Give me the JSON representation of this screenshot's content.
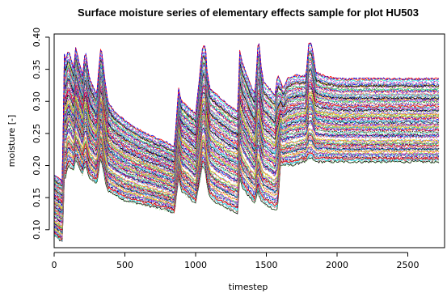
{
  "chart_data": {
    "type": "line",
    "title": "Surface moisture series of elementary effects sample for plot HU503",
    "xlabel": "timestep",
    "ylabel": "moisture [-]",
    "xlim": [
      0,
      2760
    ],
    "ylim": [
      0.072,
      0.405
    ],
    "x_ticks": [
      0,
      500,
      1000,
      1500,
      2000,
      2500
    ],
    "y_ticks": [
      0.1,
      0.15,
      0.2,
      0.25,
      0.3,
      0.35,
      0.4
    ],
    "grid": false,
    "legend": "none",
    "series_count_approx": 130,
    "palette": [
      "#000000",
      "#DF536B",
      "#61D04F",
      "#2297E6",
      "#28E2E5",
      "#CD0BBC",
      "#F5C710",
      "#9E9E9E",
      "#FF0000",
      "#0000FF"
    ],
    "series_description": "Many overlapping moisture series following a common temporal pattern; representative envelope given as upper/lower bounds over time.",
    "envelope": {
      "x": [
        0,
        60,
        70,
        75,
        100,
        140,
        150,
        200,
        220,
        250,
        300,
        330,
        340,
        360,
        380,
        420,
        500,
        600,
        700,
        800,
        850,
        880,
        900,
        950,
        1000,
        1050,
        1070,
        1080,
        1100,
        1150,
        1200,
        1250,
        1300,
        1310,
        1330,
        1380,
        1420,
        1440,
        1450,
        1460,
        1480,
        1520,
        1560,
        1580,
        1600,
        1620,
        1650,
        1700,
        1750,
        1780,
        1800,
        1820,
        1850,
        1900,
        2000,
        2100,
        2200,
        2300,
        2400,
        2500,
        2600,
        2700
      ],
      "upper": [
        0.185,
        0.175,
        0.385,
        0.36,
        0.38,
        0.35,
        0.385,
        0.34,
        0.38,
        0.335,
        0.31,
        0.385,
        0.37,
        0.33,
        0.3,
        0.285,
        0.27,
        0.255,
        0.245,
        0.235,
        0.23,
        0.32,
        0.3,
        0.29,
        0.28,
        0.385,
        0.385,
        0.35,
        0.32,
        0.31,
        0.3,
        0.29,
        0.285,
        0.38,
        0.36,
        0.33,
        0.31,
        0.385,
        0.39,
        0.36,
        0.33,
        0.32,
        0.31,
        0.34,
        0.33,
        0.32,
        0.335,
        0.34,
        0.34,
        0.34,
        0.39,
        0.39,
        0.345,
        0.34,
        0.335,
        0.335,
        0.335,
        0.335,
        0.335,
        0.335,
        0.335,
        0.335
      ],
      "lower": [
        0.09,
        0.08,
        0.18,
        0.175,
        0.2,
        0.19,
        0.21,
        0.185,
        0.2,
        0.18,
        0.17,
        0.21,
        0.2,
        0.175,
        0.16,
        0.155,
        0.145,
        0.14,
        0.135,
        0.13,
        0.125,
        0.18,
        0.16,
        0.15,
        0.14,
        0.2,
        0.19,
        0.17,
        0.15,
        0.14,
        0.135,
        0.13,
        0.125,
        0.18,
        0.165,
        0.15,
        0.14,
        0.16,
        0.15,
        0.145,
        0.14,
        0.135,
        0.13,
        0.13,
        0.2,
        0.2,
        0.2,
        0.2,
        0.205,
        0.205,
        0.21,
        0.21,
        0.205,
        0.205,
        0.205,
        0.205,
        0.205,
        0.205,
        0.205,
        0.205,
        0.205,
        0.205
      ]
    }
  }
}
